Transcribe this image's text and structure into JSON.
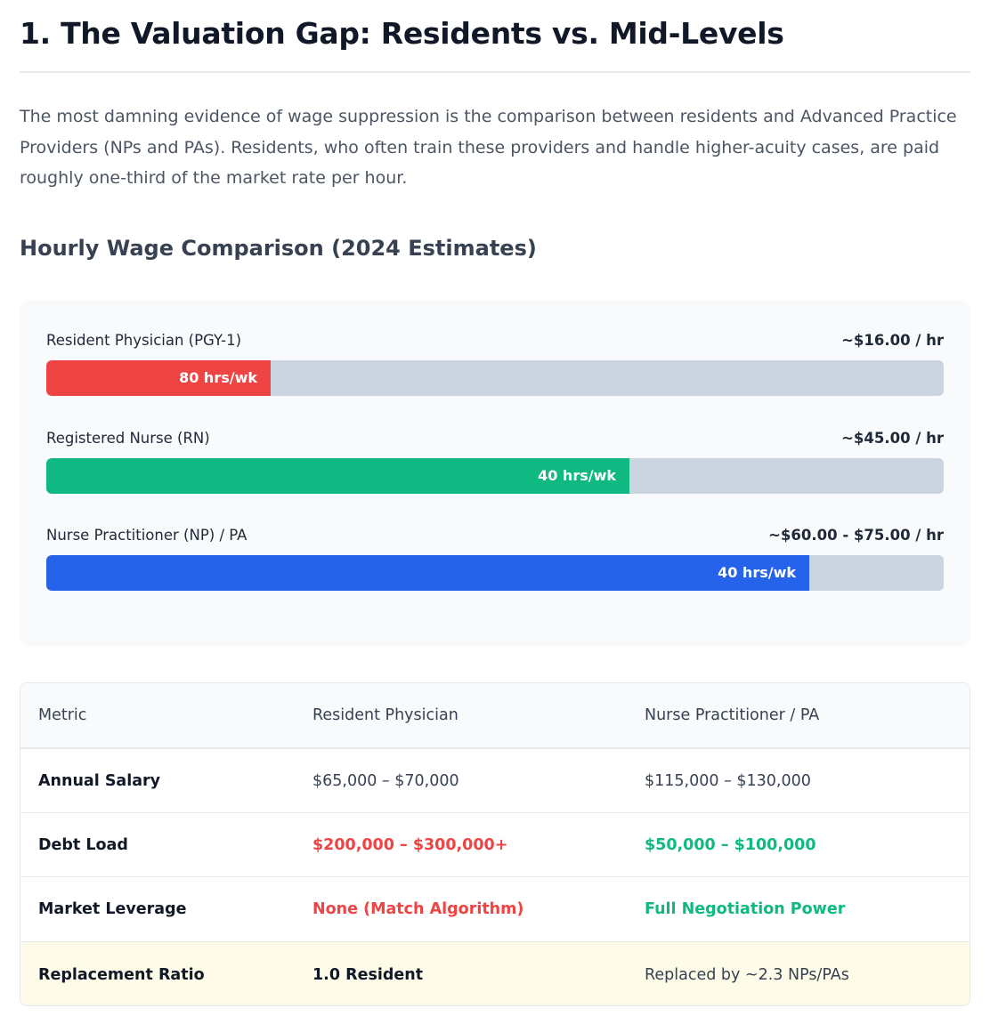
{
  "header": {
    "title": "1. The Valuation Gap: Residents vs. Mid-Levels"
  },
  "intro": "The most damning evidence of wage suppression is the comparison between residents and Advanced Practice Providers (NPs and PAs). Residents, who often train these providers and handle higher-acuity cases, are paid roughly one-third of the market rate per hour.",
  "chart": {
    "title": "Hourly Wage Comparison (2024 Estimates)",
    "bars": [
      {
        "label": "Resident Physician (PGY-1)",
        "value": "~$16.00 / hr",
        "fill_label": "80 hrs/wk",
        "fill_fraction": 0.25,
        "color": "#ef4444"
      },
      {
        "label": "Registered Nurse (RN)",
        "value": "~$45.00 / hr",
        "fill_label": "40 hrs/wk",
        "fill_fraction": 0.65,
        "color": "#10b981"
      },
      {
        "label": "Nurse Practitioner (NP) / PA",
        "value": "~$60.00 - $75.00 / hr",
        "fill_label": "40 hrs/wk",
        "fill_fraction": 0.85,
        "color": "#2563eb"
      }
    ]
  },
  "table": {
    "headers": [
      "Metric",
      "Resident Physician",
      "Nurse Practitioner / PA"
    ],
    "rows": [
      {
        "metric": "Annual Salary",
        "resident": "$65,000 – $70,000",
        "np": "$115,000 – $130,000"
      },
      {
        "metric": "Debt Load",
        "resident": "$200,000 – $300,000+",
        "np": "$50,000 – $100,000"
      },
      {
        "metric": "Market Leverage",
        "resident": "None (Match Algorithm)",
        "np": "Full Negotiation Power"
      },
      {
        "metric": "Replacement Ratio",
        "resident": "1.0 Resident",
        "np": "Replaced by ~2.3 NPs/PAs"
      }
    ]
  },
  "colors": {
    "negative": "#ef4444",
    "positive": "#10b981",
    "accent": "#2563eb",
    "highlight_row": "#fefce8"
  }
}
